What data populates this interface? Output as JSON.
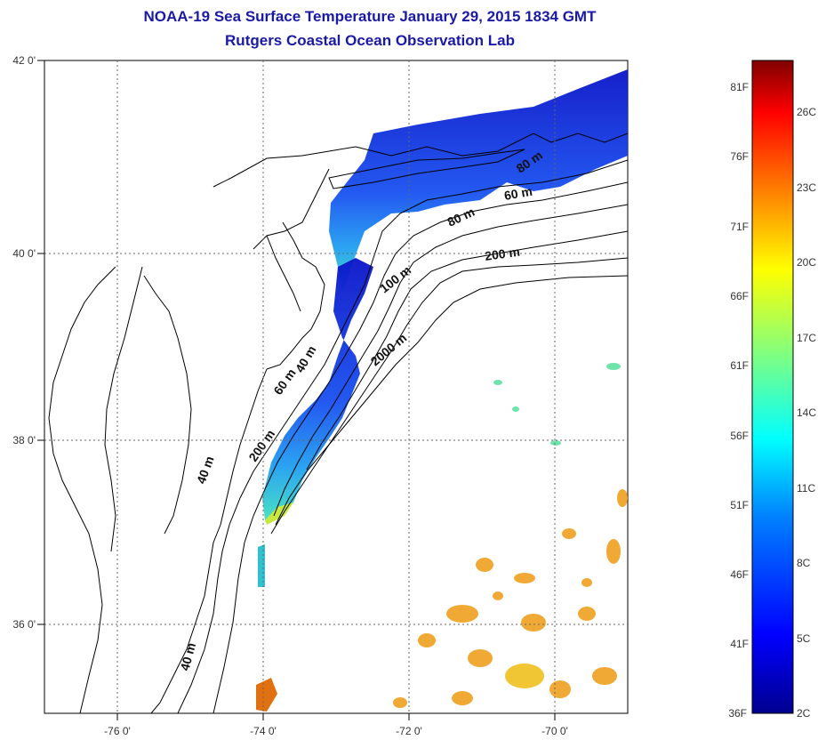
{
  "title": {
    "line1": "NOAA-19 Sea Surface Temperature January 29, 2015 1834 GMT",
    "line2": "Rutgers Coastal Ocean Observation Lab"
  },
  "map": {
    "lat_labels": [
      "42 0'",
      "40 0'",
      "38 0'",
      "36 0'"
    ],
    "lon_labels": [
      "-76 0'",
      "-74 0'",
      "-72 0'",
      "-70 0'"
    ],
    "grid": true,
    "contour_labels": [
      "80 m",
      "60 m",
      "80 m",
      "200 m",
      "100 m",
      "2000 m",
      "60 m",
      "40 m",
      "200 m",
      "40 m",
      "40 m"
    ]
  },
  "colorbar": {
    "fahrenheit_labels": [
      "81F",
      "76F",
      "71F",
      "66F",
      "61F",
      "56F",
      "51F",
      "46F",
      "41F",
      "36F"
    ],
    "celsius_labels": [
      "26C",
      "23C",
      "20C",
      "17C",
      "14C",
      "11C",
      "8C",
      "5C",
      "2C"
    ],
    "colormap": [
      "#00008f",
      "#0000ff",
      "#0080ff",
      "#00ffff",
      "#80ff80",
      "#ffff00",
      "#ff8000",
      "#ff0000",
      "#800000"
    ]
  },
  "colors": {
    "title": "#1a1aa6",
    "cold_water": "#1030d8",
    "warm_water": "#f0a020"
  }
}
